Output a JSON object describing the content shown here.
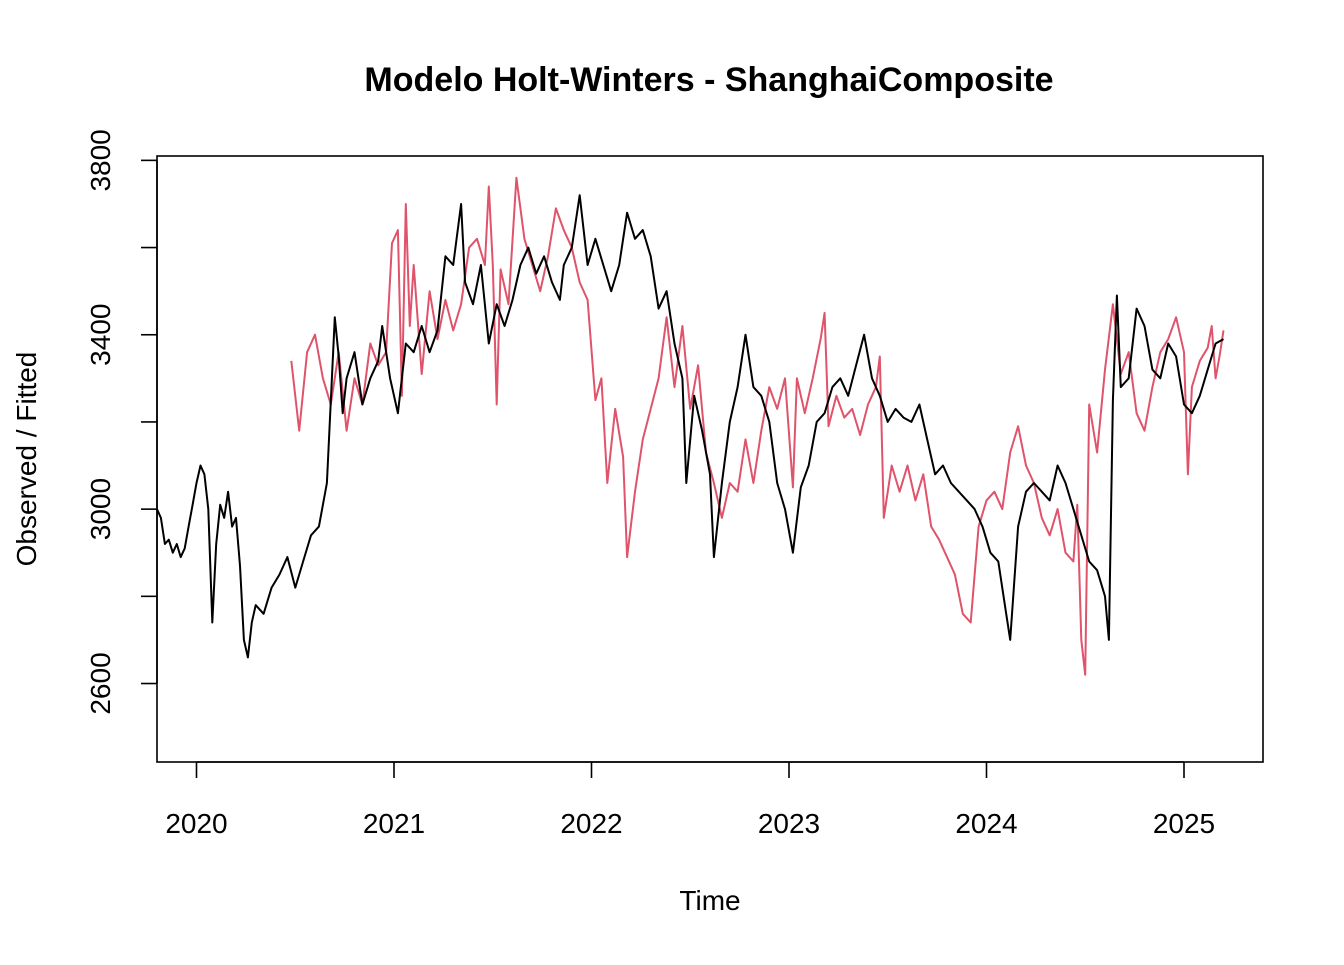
{
  "chart_data": {
    "type": "line",
    "title": "Modelo Holt-Winters - ShanghaiComposite",
    "xlabel": "Time",
    "ylabel": "Observed / Fitted",
    "xlim": [
      2019.8,
      2025.4
    ],
    "ylim": [
      2420,
      3810
    ],
    "x_ticks": [
      {
        "value": 2020,
        "label": "2020"
      },
      {
        "value": 2021,
        "label": "2021"
      },
      {
        "value": 2022,
        "label": "2022"
      },
      {
        "value": 2023,
        "label": "2023"
      },
      {
        "value": 2024,
        "label": "2024"
      },
      {
        "value": 2025,
        "label": "2025"
      }
    ],
    "y_ticks": [
      {
        "value": 2600,
        "label": "2600"
      },
      {
        "value": 3000,
        "label": "3000"
      },
      {
        "value": 3400,
        "label": "3400"
      },
      {
        "value": 3800,
        "label": "3800"
      }
    ],
    "y_minor_ticks": [
      2800,
      3200,
      3600
    ],
    "grid": false,
    "legend": null,
    "series": [
      {
        "role": "fitted",
        "color": "#DF536B",
        "points": [
          [
            2020.48,
            3340
          ],
          [
            2020.52,
            3180
          ],
          [
            2020.56,
            3360
          ],
          [
            2020.6,
            3400
          ],
          [
            2020.64,
            3300
          ],
          [
            2020.68,
            3240
          ],
          [
            2020.72,
            3360
          ],
          [
            2020.76,
            3180
          ],
          [
            2020.8,
            3300
          ],
          [
            2020.84,
            3240
          ],
          [
            2020.88,
            3380
          ],
          [
            2020.92,
            3330
          ],
          [
            2020.96,
            3360
          ],
          [
            2020.99,
            3610
          ],
          [
            2021.02,
            3640
          ],
          [
            2021.04,
            3260
          ],
          [
            2021.06,
            3700
          ],
          [
            2021.08,
            3420
          ],
          [
            2021.1,
            3560
          ],
          [
            2021.14,
            3310
          ],
          [
            2021.18,
            3500
          ],
          [
            2021.22,
            3390
          ],
          [
            2021.26,
            3480
          ],
          [
            2021.3,
            3410
          ],
          [
            2021.34,
            3470
          ],
          [
            2021.38,
            3600
          ],
          [
            2021.42,
            3620
          ],
          [
            2021.46,
            3560
          ],
          [
            2021.48,
            3740
          ],
          [
            2021.5,
            3560
          ],
          [
            2021.52,
            3240
          ],
          [
            2021.54,
            3550
          ],
          [
            2021.58,
            3470
          ],
          [
            2021.62,
            3760
          ],
          [
            2021.66,
            3620
          ],
          [
            2021.7,
            3560
          ],
          [
            2021.74,
            3500
          ],
          [
            2021.78,
            3580
          ],
          [
            2021.82,
            3690
          ],
          [
            2021.86,
            3640
          ],
          [
            2021.9,
            3600
          ],
          [
            2021.94,
            3520
          ],
          [
            2021.98,
            3480
          ],
          [
            2022.02,
            3250
          ],
          [
            2022.05,
            3300
          ],
          [
            2022.08,
            3060
          ],
          [
            2022.12,
            3230
          ],
          [
            2022.16,
            3120
          ],
          [
            2022.18,
            2890
          ],
          [
            2022.22,
            3040
          ],
          [
            2022.26,
            3160
          ],
          [
            2022.3,
            3230
          ],
          [
            2022.34,
            3300
          ],
          [
            2022.38,
            3440
          ],
          [
            2022.42,
            3280
          ],
          [
            2022.46,
            3420
          ],
          [
            2022.5,
            3230
          ],
          [
            2022.54,
            3330
          ],
          [
            2022.58,
            3130
          ],
          [
            2022.62,
            3060
          ],
          [
            2022.66,
            2980
          ],
          [
            2022.7,
            3060
          ],
          [
            2022.74,
            3040
          ],
          [
            2022.78,
            3160
          ],
          [
            2022.82,
            3060
          ],
          [
            2022.86,
            3180
          ],
          [
            2022.9,
            3280
          ],
          [
            2022.94,
            3230
          ],
          [
            2022.98,
            3300
          ],
          [
            2023.02,
            3050
          ],
          [
            2023.04,
            3300
          ],
          [
            2023.08,
            3220
          ],
          [
            2023.12,
            3300
          ],
          [
            2023.16,
            3390
          ],
          [
            2023.18,
            3450
          ],
          [
            2023.2,
            3190
          ],
          [
            2023.24,
            3260
          ],
          [
            2023.28,
            3210
          ],
          [
            2023.32,
            3230
          ],
          [
            2023.36,
            3170
          ],
          [
            2023.4,
            3240
          ],
          [
            2023.44,
            3280
          ],
          [
            2023.46,
            3350
          ],
          [
            2023.48,
            2980
          ],
          [
            2023.52,
            3100
          ],
          [
            2023.56,
            3040
          ],
          [
            2023.6,
            3100
          ],
          [
            2023.64,
            3020
          ],
          [
            2023.68,
            3080
          ],
          [
            2023.72,
            2960
          ],
          [
            2023.76,
            2930
          ],
          [
            2023.8,
            2890
          ],
          [
            2023.84,
            2850
          ],
          [
            2023.88,
            2760
          ],
          [
            2023.92,
            2740
          ],
          [
            2023.96,
            2960
          ],
          [
            2024.0,
            3020
          ],
          [
            2024.04,
            3040
          ],
          [
            2024.08,
            3000
          ],
          [
            2024.12,
            3130
          ],
          [
            2024.16,
            3190
          ],
          [
            2024.2,
            3100
          ],
          [
            2024.24,
            3060
          ],
          [
            2024.28,
            2980
          ],
          [
            2024.32,
            2940
          ],
          [
            2024.36,
            3000
          ],
          [
            2024.4,
            2900
          ],
          [
            2024.44,
            2880
          ],
          [
            2024.46,
            3010
          ],
          [
            2024.48,
            2700
          ],
          [
            2024.5,
            2620
          ],
          [
            2024.52,
            3240
          ],
          [
            2024.56,
            3130
          ],
          [
            2024.6,
            3320
          ],
          [
            2024.64,
            3470
          ],
          [
            2024.68,
            3310
          ],
          [
            2024.72,
            3360
          ],
          [
            2024.76,
            3220
          ],
          [
            2024.8,
            3180
          ],
          [
            2024.84,
            3280
          ],
          [
            2024.88,
            3360
          ],
          [
            2024.92,
            3390
          ],
          [
            2024.96,
            3440
          ],
          [
            2025.0,
            3360
          ],
          [
            2025.02,
            3080
          ],
          [
            2025.04,
            3280
          ],
          [
            2025.08,
            3340
          ],
          [
            2025.12,
            3370
          ],
          [
            2025.14,
            3420
          ],
          [
            2025.16,
            3300
          ],
          [
            2025.18,
            3350
          ],
          [
            2025.2,
            3410
          ]
        ]
      },
      {
        "role": "observed",
        "color": "#000000",
        "points": [
          [
            2019.8,
            3000
          ],
          [
            2019.82,
            2980
          ],
          [
            2019.84,
            2920
          ],
          [
            2019.86,
            2930
          ],
          [
            2019.88,
            2900
          ],
          [
            2019.9,
            2920
          ],
          [
            2019.92,
            2890
          ],
          [
            2019.94,
            2910
          ],
          [
            2019.96,
            2960
          ],
          [
            2019.98,
            3010
          ],
          [
            2020.0,
            3060
          ],
          [
            2020.02,
            3100
          ],
          [
            2020.04,
            3080
          ],
          [
            2020.06,
            3000
          ],
          [
            2020.08,
            2740
          ],
          [
            2020.1,
            2920
          ],
          [
            2020.12,
            3010
          ],
          [
            2020.14,
            2980
          ],
          [
            2020.16,
            3040
          ],
          [
            2020.18,
            2960
          ],
          [
            2020.2,
            2980
          ],
          [
            2020.22,
            2870
          ],
          [
            2020.24,
            2700
          ],
          [
            2020.26,
            2660
          ],
          [
            2020.28,
            2740
          ],
          [
            2020.3,
            2780
          ],
          [
            2020.34,
            2760
          ],
          [
            2020.38,
            2820
          ],
          [
            2020.42,
            2850
          ],
          [
            2020.46,
            2890
          ],
          [
            2020.5,
            2820
          ],
          [
            2020.54,
            2880
          ],
          [
            2020.58,
            2940
          ],
          [
            2020.62,
            2960
          ],
          [
            2020.66,
            3060
          ],
          [
            2020.7,
            3440
          ],
          [
            2020.72,
            3350
          ],
          [
            2020.74,
            3220
          ],
          [
            2020.76,
            3300
          ],
          [
            2020.8,
            3360
          ],
          [
            2020.84,
            3240
          ],
          [
            2020.88,
            3300
          ],
          [
            2020.92,
            3340
          ],
          [
            2020.94,
            3420
          ],
          [
            2020.98,
            3300
          ],
          [
            2021.02,
            3220
          ],
          [
            2021.06,
            3380
          ],
          [
            2021.1,
            3360
          ],
          [
            2021.14,
            3420
          ],
          [
            2021.18,
            3360
          ],
          [
            2021.22,
            3410
          ],
          [
            2021.26,
            3580
          ],
          [
            2021.3,
            3560
          ],
          [
            2021.34,
            3700
          ],
          [
            2021.36,
            3520
          ],
          [
            2021.4,
            3470
          ],
          [
            2021.44,
            3560
          ],
          [
            2021.48,
            3380
          ],
          [
            2021.52,
            3470
          ],
          [
            2021.56,
            3420
          ],
          [
            2021.6,
            3480
          ],
          [
            2021.64,
            3560
          ],
          [
            2021.68,
            3600
          ],
          [
            2021.72,
            3540
          ],
          [
            2021.76,
            3580
          ],
          [
            2021.8,
            3520
          ],
          [
            2021.84,
            3480
          ],
          [
            2021.86,
            3560
          ],
          [
            2021.9,
            3600
          ],
          [
            2021.94,
            3720
          ],
          [
            2021.98,
            3560
          ],
          [
            2022.02,
            3620
          ],
          [
            2022.06,
            3560
          ],
          [
            2022.1,
            3500
          ],
          [
            2022.14,
            3560
          ],
          [
            2022.18,
            3680
          ],
          [
            2022.22,
            3620
          ],
          [
            2022.26,
            3640
          ],
          [
            2022.3,
            3580
          ],
          [
            2022.34,
            3460
          ],
          [
            2022.38,
            3500
          ],
          [
            2022.42,
            3380
          ],
          [
            2022.46,
            3300
          ],
          [
            2022.48,
            3060
          ],
          [
            2022.52,
            3260
          ],
          [
            2022.56,
            3180
          ],
          [
            2022.6,
            3080
          ],
          [
            2022.62,
            2890
          ],
          [
            2022.66,
            3060
          ],
          [
            2022.7,
            3200
          ],
          [
            2022.74,
            3280
          ],
          [
            2022.78,
            3400
          ],
          [
            2022.82,
            3280
          ],
          [
            2022.86,
            3260
          ],
          [
            2022.9,
            3200
          ],
          [
            2022.94,
            3060
          ],
          [
            2022.98,
            3000
          ],
          [
            2023.02,
            2900
          ],
          [
            2023.06,
            3050
          ],
          [
            2023.1,
            3100
          ],
          [
            2023.14,
            3200
          ],
          [
            2023.18,
            3220
          ],
          [
            2023.22,
            3280
          ],
          [
            2023.26,
            3300
          ],
          [
            2023.3,
            3260
          ],
          [
            2023.34,
            3330
          ],
          [
            2023.38,
            3400
          ],
          [
            2023.42,
            3300
          ],
          [
            2023.46,
            3260
          ],
          [
            2023.5,
            3200
          ],
          [
            2023.54,
            3230
          ],
          [
            2023.58,
            3210
          ],
          [
            2023.62,
            3200
          ],
          [
            2023.66,
            3240
          ],
          [
            2023.7,
            3160
          ],
          [
            2023.74,
            3080
          ],
          [
            2023.78,
            3100
          ],
          [
            2023.82,
            3060
          ],
          [
            2023.86,
            3040
          ],
          [
            2023.9,
            3020
          ],
          [
            2023.94,
            3000
          ],
          [
            2023.98,
            2960
          ],
          [
            2024.02,
            2900
          ],
          [
            2024.06,
            2880
          ],
          [
            2024.1,
            2760
          ],
          [
            2024.12,
            2700
          ],
          [
            2024.16,
            2960
          ],
          [
            2024.2,
            3040
          ],
          [
            2024.24,
            3060
          ],
          [
            2024.28,
            3040
          ],
          [
            2024.32,
            3020
          ],
          [
            2024.36,
            3100
          ],
          [
            2024.4,
            3060
          ],
          [
            2024.44,
            3000
          ],
          [
            2024.48,
            2940
          ],
          [
            2024.52,
            2880
          ],
          [
            2024.56,
            2860
          ],
          [
            2024.6,
            2800
          ],
          [
            2024.62,
            2700
          ],
          [
            2024.64,
            3250
          ],
          [
            2024.66,
            3490
          ],
          [
            2024.68,
            3280
          ],
          [
            2024.72,
            3300
          ],
          [
            2024.76,
            3460
          ],
          [
            2024.8,
            3420
          ],
          [
            2024.84,
            3320
          ],
          [
            2024.88,
            3300
          ],
          [
            2024.92,
            3380
          ],
          [
            2024.96,
            3350
          ],
          [
            2025.0,
            3240
          ],
          [
            2025.04,
            3220
          ],
          [
            2025.08,
            3260
          ],
          [
            2025.12,
            3320
          ],
          [
            2025.16,
            3380
          ],
          [
            2025.2,
            3390
          ]
        ]
      }
    ]
  }
}
